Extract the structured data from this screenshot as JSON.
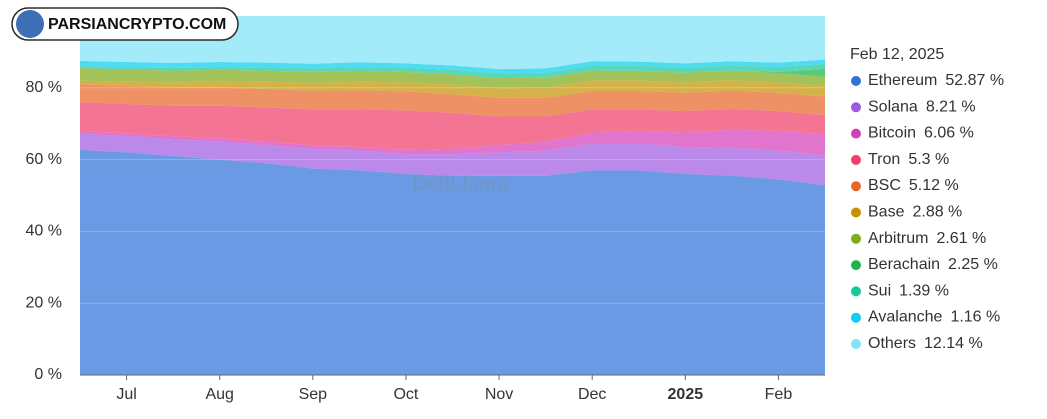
{
  "brand": "PARSIANCRYPTO.COM",
  "watermark": "DefiLlama",
  "chart_data": {
    "type": "stacked-area",
    "tooltip_title": "Feb 12, 2025",
    "categories": [
      null,
      "Jul",
      null,
      "Aug",
      null,
      "Sep",
      null,
      "Oct",
      null,
      "Nov",
      null,
      "Dec",
      null,
      "2025",
      null,
      "Feb",
      null
    ],
    "ylim": [
      0,
      100
    ],
    "yticks": [
      {
        "value": 0,
        "label": "0 %"
      },
      {
        "value": 20,
        "label": "20 %"
      },
      {
        "value": 40,
        "label": "40 %"
      },
      {
        "value": 60,
        "label": "60 %"
      },
      {
        "value": 80,
        "label": "80 %"
      }
    ],
    "series": [
      {
        "name": "Ethereum",
        "color": "#2f73d8",
        "values": [
          62.7,
          62,
          61,
          60,
          59,
          57.5,
          57,
          56,
          55.5,
          55.5,
          55.5,
          57,
          57,
          56,
          55.5,
          54.5,
          52.87
        ],
        "value_labels": [
          null,
          null,
          null,
          null,
          null,
          null,
          null,
          null,
          null,
          null,
          null,
          null,
          null,
          null,
          null,
          null,
          "52.87 %"
        ]
      },
      {
        "name": "Solana",
        "color": "#a05ce0",
        "values": [
          4.5,
          4.5,
          4.6,
          5,
          5,
          5.5,
          5.5,
          5.5,
          6,
          6.5,
          7,
          7.5,
          7.5,
          7.5,
          7.8,
          8,
          8.21
        ],
        "value_labels": [
          null,
          null,
          null,
          null,
          null,
          null,
          null,
          null,
          null,
          null,
          null,
          null,
          null,
          null,
          null,
          null,
          "8.21 %"
        ]
      },
      {
        "name": "Bitcoin",
        "color": "#d63fb8",
        "values": [
          0.8,
          0.8,
          0.9,
          1,
          1,
          1,
          1,
          1.2,
          1.5,
          2,
          2.5,
          3,
          3.5,
          4,
          5,
          5.5,
          6.06
        ],
        "value_labels": [
          null,
          null,
          null,
          null,
          null,
          null,
          null,
          null,
          null,
          null,
          null,
          null,
          null,
          null,
          null,
          null,
          "6.06 %"
        ]
      },
      {
        "name": "Tron",
        "color": "#ef3f6a",
        "values": [
          8,
          8.2,
          8.5,
          9,
          9.5,
          10,
          10.5,
          11,
          10,
          8,
          7,
          6.5,
          6,
          6,
          5.8,
          5.5,
          5.3
        ],
        "value_labels": [
          null,
          null,
          null,
          null,
          null,
          null,
          null,
          null,
          null,
          null,
          null,
          null,
          null,
          null,
          null,
          null,
          "5.3 %"
        ]
      },
      {
        "name": "BSC",
        "color": "#e8672a",
        "values": [
          5,
          5,
          5,
          5,
          5.2,
          5.2,
          5.3,
          5.3,
          5.2,
          5.2,
          5.2,
          5.1,
          5.1,
          5.1,
          5.1,
          5.1,
          5.12
        ],
        "value_labels": [
          null,
          null,
          null,
          null,
          null,
          null,
          null,
          null,
          null,
          null,
          null,
          null,
          null,
          null,
          null,
          null,
          "5.12 %"
        ]
      },
      {
        "name": "Base",
        "color": "#c49400",
        "values": [
          1,
          1.2,
          1.5,
          1.8,
          2,
          2.2,
          2.4,
          2.5,
          2.6,
          2.7,
          2.8,
          2.9,
          2.9,
          2.9,
          2.9,
          2.9,
          2.88
        ],
        "value_labels": [
          null,
          null,
          null,
          null,
          null,
          null,
          null,
          null,
          null,
          null,
          null,
          null,
          null,
          null,
          null,
          null,
          "2.88 %"
        ]
      },
      {
        "name": "Arbitrum",
        "color": "#80ab1a",
        "values": [
          3.5,
          3.4,
          3.3,
          3.2,
          3.1,
          3,
          3,
          2.9,
          2.9,
          2.8,
          2.8,
          2.8,
          2.7,
          2.7,
          2.7,
          2.6,
          2.61
        ],
        "value_labels": [
          null,
          null,
          null,
          null,
          null,
          null,
          null,
          null,
          null,
          null,
          null,
          null,
          null,
          null,
          null,
          null,
          "2.61 %"
        ]
      },
      {
        "name": "Berachain",
        "color": "#1fb34a",
        "values": [
          0,
          0,
          0,
          0,
          0,
          0,
          0,
          0,
          0,
          0,
          0,
          0,
          0,
          0,
          0,
          0.3,
          2.25
        ],
        "value_labels": [
          null,
          null,
          null,
          null,
          null,
          null,
          null,
          null,
          null,
          null,
          null,
          null,
          null,
          null,
          null,
          null,
          "2.25 %"
        ]
      },
      {
        "name": "Sui",
        "color": "#18c99a",
        "values": [
          0.5,
          0.6,
          0.7,
          0.8,
          0.9,
          1,
          1.1,
          1.2,
          1.3,
          1.3,
          1.4,
          1.4,
          1.4,
          1.4,
          1.4,
          1.4,
          1.39
        ],
        "value_labels": [
          null,
          null,
          null,
          null,
          null,
          null,
          null,
          null,
          null,
          null,
          null,
          null,
          null,
          null,
          null,
          null,
          "1.39 %"
        ]
      },
      {
        "name": "Avalanche",
        "color": "#0bcdf0",
        "values": [
          1.5,
          1.5,
          1.4,
          1.4,
          1.3,
          1.3,
          1.3,
          1.2,
          1.2,
          1.2,
          1.2,
          1.2,
          1.2,
          1.2,
          1.2,
          1.2,
          1.16
        ],
        "value_labels": [
          null,
          null,
          null,
          null,
          null,
          null,
          null,
          null,
          null,
          null,
          null,
          null,
          null,
          null,
          null,
          null,
          "1.16 %"
        ]
      },
      {
        "name": "Others",
        "color": "#7fe3f7",
        "values": [
          12.5,
          12.8,
          13.1,
          12.8,
          13,
          13.3,
          12.9,
          13.2,
          13.8,
          14.8,
          14.6,
          12.6,
          12.7,
          13.2,
          12.6,
          13,
          12.14
        ],
        "value_labels": [
          null,
          null,
          null,
          null,
          null,
          null,
          null,
          null,
          null,
          null,
          null,
          null,
          null,
          null,
          null,
          null,
          "12.14 %"
        ]
      }
    ]
  }
}
